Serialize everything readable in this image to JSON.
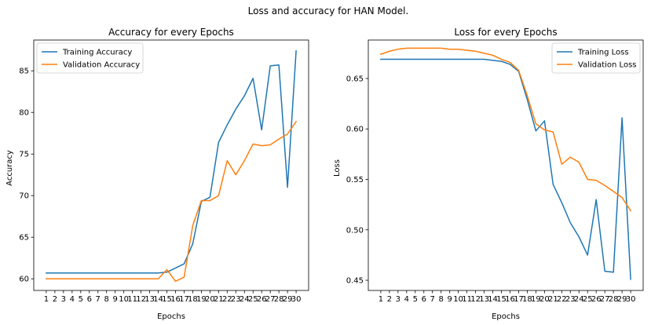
{
  "figure": {
    "suptitle": "Loss and accuracy for HAN Model."
  },
  "chart_data": [
    {
      "type": "line",
      "title": "Accuracy for every Epochs",
      "xlabel": "Epochs",
      "ylabel": "Accuracy",
      "x": [
        1,
        2,
        3,
        4,
        5,
        6,
        7,
        8,
        9,
        10,
        11,
        12,
        13,
        14,
        15,
        16,
        17,
        18,
        19,
        20,
        21,
        22,
        23,
        24,
        25,
        26,
        27,
        28,
        29,
        30
      ],
      "xticks": [
        1,
        2,
        3,
        4,
        5,
        6,
        7,
        8,
        9,
        10,
        11,
        12,
        13,
        14,
        15,
        16,
        17,
        18,
        19,
        20,
        21,
        22,
        23,
        24,
        25,
        26,
        27,
        28,
        29,
        30
      ],
      "yticks": [
        60,
        65,
        70,
        75,
        80,
        85
      ],
      "xlim": [
        -0.45,
        31.45
      ],
      "ylim": [
        58.6,
        88.7
      ],
      "grid": false,
      "legend_position": "top-left",
      "series": [
        {
          "name": "Training Accuracy",
          "color": "#1f77b4",
          "values": [
            60.7,
            60.7,
            60.7,
            60.7,
            60.7,
            60.7,
            60.7,
            60.7,
            60.7,
            60.7,
            60.7,
            60.7,
            60.7,
            60.7,
            60.8,
            61.3,
            61.8,
            64.2,
            69.3,
            69.8,
            76.4,
            78.5,
            80.4,
            82.0,
            84.1,
            77.9,
            85.6,
            85.7,
            71.0,
            87.4
          ]
        },
        {
          "name": "Validation Accuracy",
          "color": "#ff7f0e",
          "values": [
            60.0,
            60.0,
            60.0,
            60.0,
            60.0,
            60.0,
            60.0,
            60.0,
            60.0,
            60.0,
            60.0,
            60.0,
            60.0,
            60.0,
            61.1,
            59.7,
            60.2,
            66.4,
            69.4,
            69.4,
            70.0,
            74.2,
            72.5,
            74.2,
            76.2,
            76.0,
            76.1,
            76.8,
            77.4,
            78.9
          ]
        }
      ]
    },
    {
      "type": "line",
      "title": "Loss for every Epochs",
      "xlabel": "Epochs",
      "ylabel": "Loss",
      "x": [
        1,
        2,
        3,
        4,
        5,
        6,
        7,
        8,
        9,
        10,
        11,
        12,
        13,
        14,
        15,
        16,
        17,
        18,
        19,
        20,
        21,
        22,
        23,
        24,
        25,
        26,
        27,
        28,
        29,
        30
      ],
      "xticks": [
        1,
        2,
        3,
        4,
        5,
        6,
        7,
        8,
        9,
        10,
        11,
        12,
        13,
        14,
        15,
        16,
        17,
        18,
        19,
        20,
        21,
        22,
        23,
        24,
        25,
        26,
        27,
        28,
        29,
        30
      ],
      "yticks": [
        0.45,
        0.5,
        0.55,
        0.6,
        0.65
      ],
      "ytick_labels": [
        "0.45",
        "0.50",
        "0.55",
        "0.60",
        "0.65"
      ],
      "xlim": [
        -0.45,
        31.45
      ],
      "ylim": [
        0.4399,
        0.6881
      ],
      "grid": false,
      "legend_position": "top-right",
      "series": [
        {
          "name": "Training Loss",
          "color": "#1f77b4",
          "values": [
            0.669,
            0.669,
            0.669,
            0.669,
            0.669,
            0.669,
            0.669,
            0.669,
            0.669,
            0.669,
            0.669,
            0.669,
            0.669,
            0.668,
            0.667,
            0.664,
            0.657,
            0.629,
            0.598,
            0.608,
            0.545,
            0.527,
            0.507,
            0.493,
            0.475,
            0.53,
            0.459,
            0.458,
            0.611,
            0.451
          ]
        },
        {
          "name": "Validation Loss",
          "color": "#ff7f0e",
          "values": [
            0.674,
            0.677,
            0.679,
            0.68,
            0.68,
            0.68,
            0.68,
            0.68,
            0.679,
            0.679,
            0.678,
            0.677,
            0.675,
            0.673,
            0.669,
            0.666,
            0.658,
            0.633,
            0.605,
            0.599,
            0.597,
            0.565,
            0.572,
            0.567,
            0.55,
            0.549,
            0.544,
            0.538,
            0.532,
            0.519
          ]
        }
      ]
    }
  ]
}
